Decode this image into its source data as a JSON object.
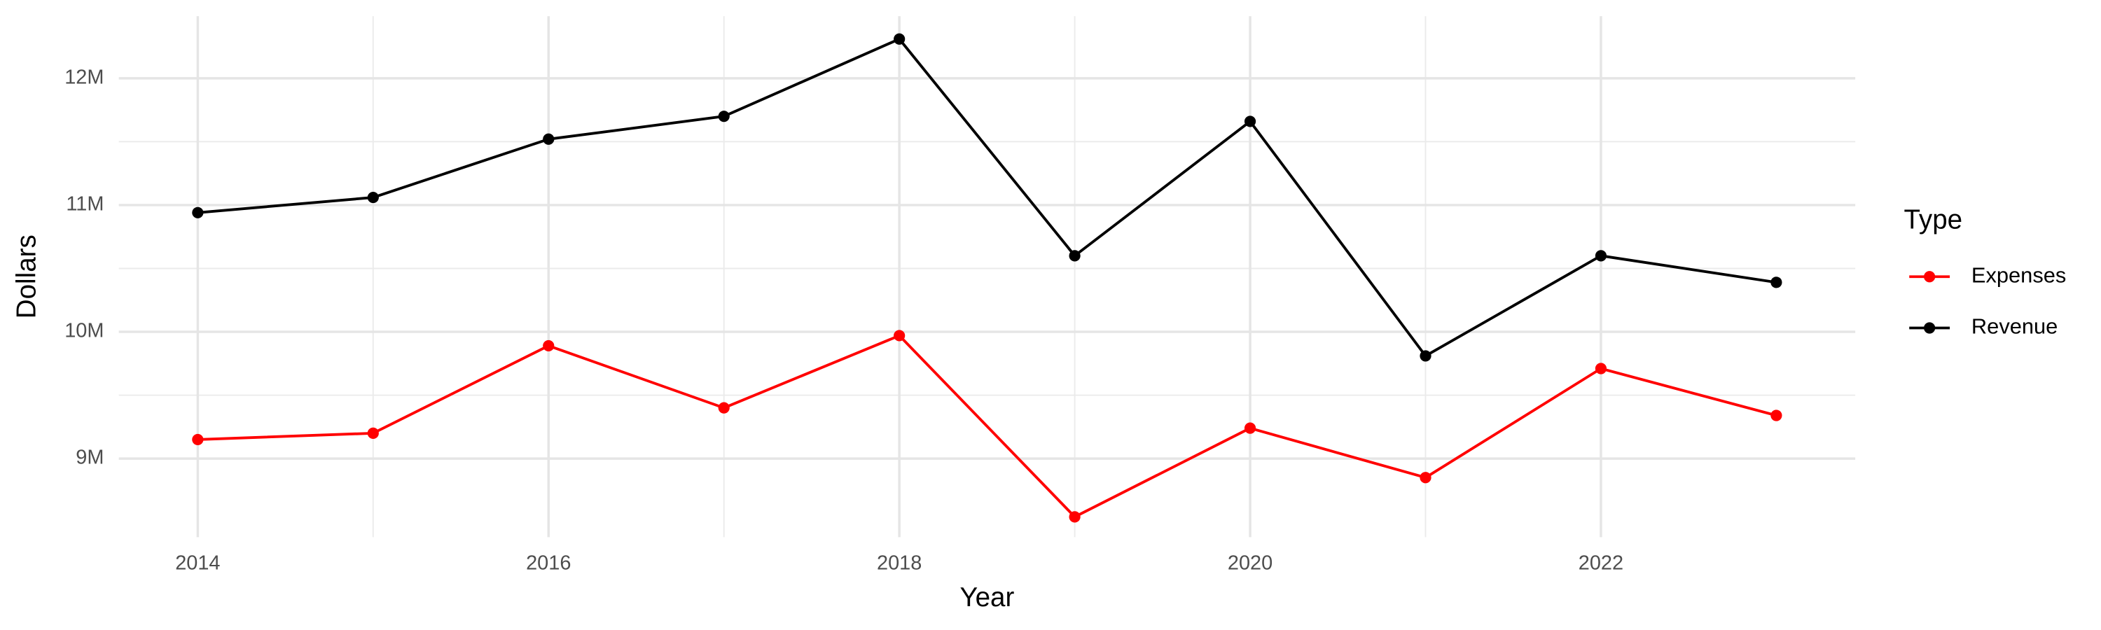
{
  "chart_data": {
    "type": "line",
    "x_label": "Year",
    "y_label": "Dollars",
    "x": [
      2014,
      2015,
      2016,
      2017,
      2018,
      2019,
      2020,
      2021,
      2022,
      2023
    ],
    "series": [
      {
        "name": "Expenses",
        "color": "#ff0000",
        "values": [
          9150000,
          9200000,
          9890000,
          9400000,
          9970000,
          8540000,
          9240000,
          8850000,
          9710000,
          9340000
        ]
      },
      {
        "name": "Revenue",
        "color": "#000000",
        "values": [
          10940000,
          11060000,
          11520000,
          11700000,
          12310000,
          10600000,
          11660000,
          9810000,
          10600000,
          10390000
        ]
      }
    ],
    "xlim": [
      2013.55,
      2023.45
    ],
    "xticks": [
      2014,
      2016,
      2018,
      2020,
      2022
    ],
    "ylim": [
      8380000,
      12490000
    ],
    "yticks": [
      {
        "value": 9000000,
        "label": "9M"
      },
      {
        "value": 10000000,
        "label": "10M"
      },
      {
        "value": 11000000,
        "label": "11M"
      },
      {
        "value": 12000000,
        "label": "12M"
      }
    ],
    "grid": true,
    "legend_title": "Type",
    "legend_position": "right"
  }
}
